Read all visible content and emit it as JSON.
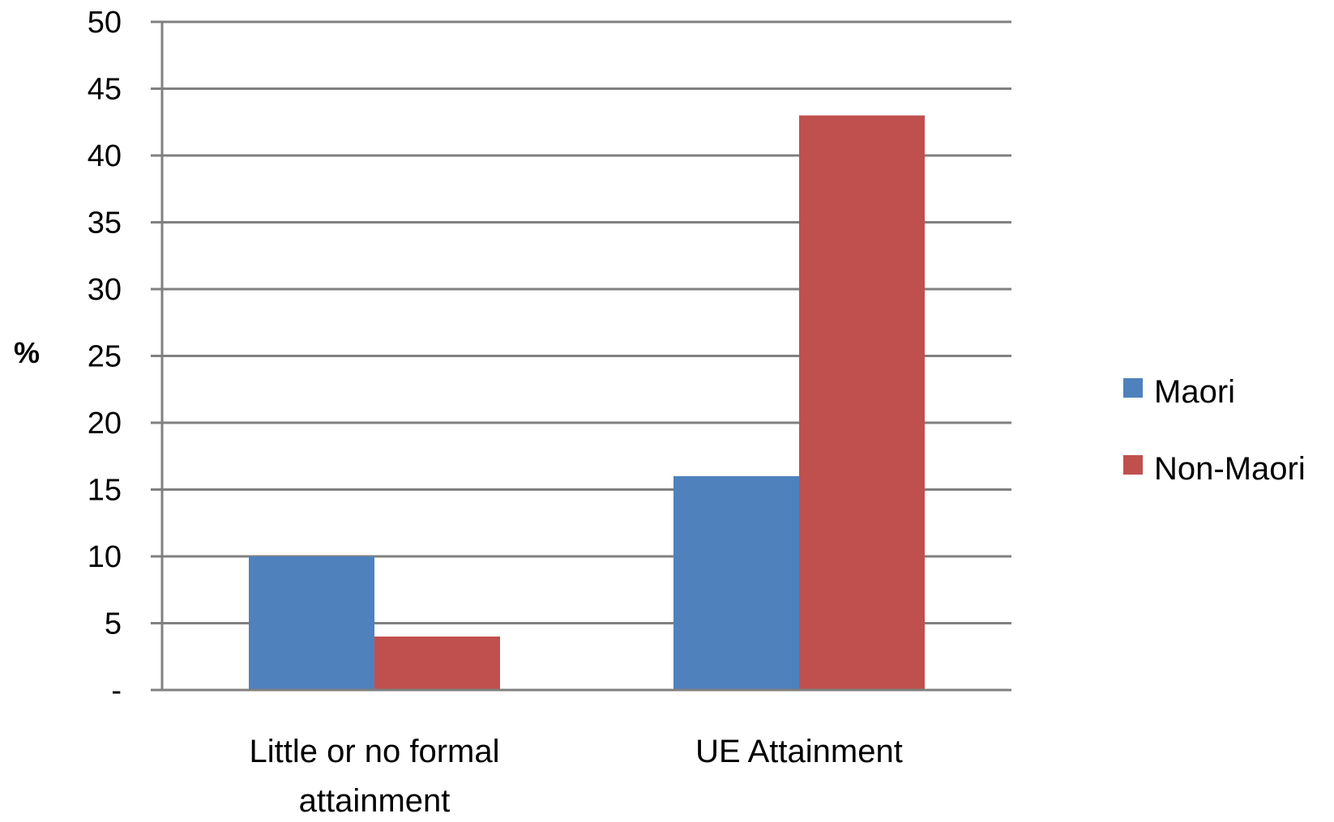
{
  "chart_data": {
    "type": "bar",
    "title": "",
    "xlabel": "",
    "ylabel": "%",
    "categories": [
      [
        "Little or no formal",
        "attainment"
      ],
      [
        "UE Attainment"
      ]
    ],
    "series": [
      {
        "name": "Maori",
        "color": "#4F81BD",
        "values": [
          10,
          16
        ]
      },
      {
        "name": "Non-Maori",
        "color": "#C0504D",
        "values": [
          4,
          43
        ]
      }
    ],
    "ylim": [
      0,
      50
    ],
    "yticks": [
      0,
      5,
      10,
      15,
      20,
      25,
      30,
      35,
      40,
      45,
      50
    ],
    "ytick_labels": [
      "-",
      "5",
      "10",
      "15",
      "20",
      "25",
      "30",
      "35",
      "40",
      "45",
      "50"
    ],
    "grid": true,
    "legend": "right",
    "gridline_color": "#808080"
  }
}
